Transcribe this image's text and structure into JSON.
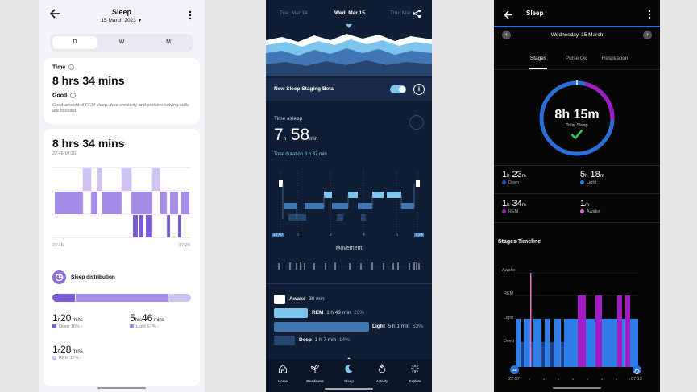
{
  "p1": {
    "header": {
      "title": "Sleep",
      "date": "15 March 2023"
    },
    "segments": [
      "D",
      "W",
      "M"
    ],
    "time_label": "Time",
    "time_value": "8 hrs 34 mins",
    "quality_label": "Good",
    "quality_desc": "Good amount of REM sleep. Your creativity and problem-solving skills are boosted.",
    "total": "8 hrs 34 mins",
    "range": "22:46-07:20",
    "axis_start": "22:46",
    "axis_end": "07:20",
    "distribution_title": "Sleep distribution",
    "stats": [
      {
        "h": "1",
        "hu": "h",
        "m": "20",
        "mu": " mins",
        "label": "Deep 16%",
        "color": "#7b5cd6"
      },
      {
        "h": "5",
        "hu": "hrs",
        "m": "46",
        "mu": " mins",
        "label": "Light 67%",
        "color": "#a58ce8"
      },
      {
        "h": "1",
        "hu": "h",
        "m": "28",
        "mu": " mins",
        "label": "REM 17%",
        "color": "#cfc3f3"
      }
    ],
    "distribution": [
      16,
      67,
      17
    ]
  },
  "p2": {
    "days": [
      "Tue, Mar 14",
      "Wed, Mar 15",
      "Thu, Mar 16"
    ],
    "toggle_label": "New Sleep Staging Beta",
    "time_asleep_label": "Time asleep",
    "hours": "7",
    "hours_unit": "h",
    "minutes": "58",
    "minutes_unit": "min",
    "total_duration": "Total duration 8 h 37 min",
    "axis": [
      "22:47",
      "0",
      "2",
      "4",
      "6",
      "7:24"
    ],
    "movement_label": "Movement",
    "legend": [
      {
        "name": "Awake",
        "value": "39 min",
        "pct": "",
        "color": "#ffffff",
        "frac": 0.08
      },
      {
        "name": "REM",
        "value": "1 h 49 min",
        "pct": "23%",
        "color": "#7cc6ee",
        "frac": 0.23
      },
      {
        "name": "Light",
        "value": "5 h 1 min",
        "pct": "63%",
        "color": "#3f76b3",
        "frac": 0.63
      },
      {
        "name": "Deep",
        "value": "1 h 7 min",
        "pct": "14%",
        "color": "#26456e",
        "frac": 0.14
      }
    ],
    "nav": [
      "Home",
      "Readiness",
      "Sleep",
      "Activity",
      "Explore"
    ]
  },
  "p3": {
    "header": {
      "title": "Sleep"
    },
    "date": "Wednesday, 15 March",
    "tabs": [
      "Stages",
      "Pulse Ox",
      "Respiration"
    ],
    "ring_value": "8h 15m",
    "ring_label": "Total Sleep",
    "stats": [
      {
        "h": "1",
        "hu": "h",
        "m": "23",
        "mu": "m",
        "label": "Deep",
        "color": "#1a4fb5"
      },
      {
        "h": "5",
        "hu": "h",
        "m": "18",
        "mu": "m",
        "label": "Light",
        "color": "#2f7ee8"
      },
      {
        "h": "1",
        "hu": "h",
        "m": "34",
        "mu": "m",
        "label": "REM",
        "color": "#a21cc4"
      },
      {
        "h": "1",
        "hu": "",
        "m": "",
        "mu": "m",
        "label": "Awake",
        "color": "#e06bd5"
      }
    ],
    "timeline_title": "Stages Timeline",
    "levels": [
      "Awake",
      "REM",
      "Light",
      "Deep"
    ],
    "time_start": "22:57",
    "time_end": "07:13"
  },
  "colors": {
    "p1_accent": "#8b6fe0",
    "p2_bg": "#0f1d35",
    "p3_ring_blue": "#2a6fd6",
    "p3_ring_purple": "#a21cc4"
  }
}
